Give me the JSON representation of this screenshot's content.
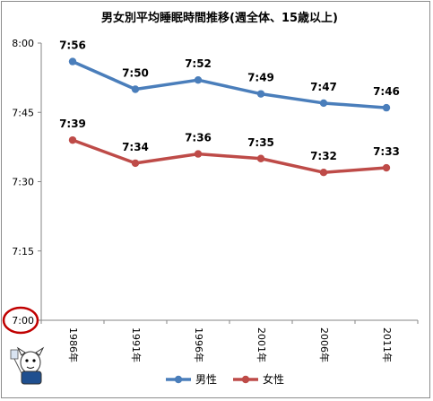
{
  "chart_data": {
    "type": "line",
    "title": "男女別平均睡眠時間推移(週全体、15歳以上)",
    "categories": [
      "1986年",
      "1991年",
      "1996年",
      "2001年",
      "2006年",
      "2011年"
    ],
    "ylim": [
      "7:00",
      "8:00"
    ],
    "yticks": [
      "8:00",
      "7:45",
      "7:30",
      "7:15",
      "7:00"
    ],
    "grid": false,
    "legend_position": "bottom",
    "series": [
      {
        "name": "男性",
        "color": "#4a7ebb",
        "values_minutes": [
          476,
          470,
          472,
          469,
          467,
          466
        ],
        "labels": [
          "7:56",
          "7:50",
          "7:52",
          "7:49",
          "7:47",
          "7:46"
        ]
      },
      {
        "name": "女性",
        "color": "#be4b48",
        "values_minutes": [
          459,
          454,
          456,
          455,
          452,
          453
        ],
        "labels": [
          "7:39",
          "7:34",
          "7:36",
          "7:35",
          "7:32",
          "7:33"
        ]
      }
    ],
    "annotation": {
      "highlighted_tick": "7:00",
      "shape": "red-circle",
      "color": "#c00000"
    }
  }
}
